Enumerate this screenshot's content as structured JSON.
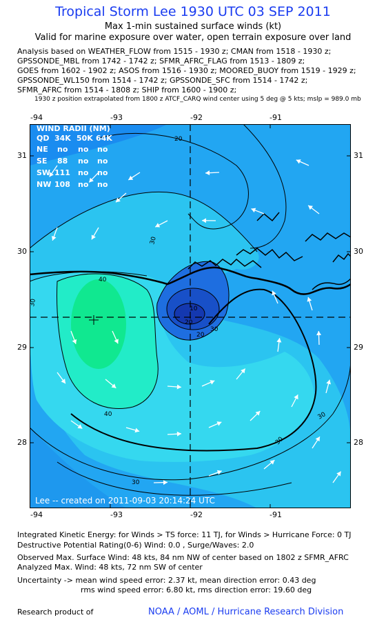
{
  "header": {
    "title": "Tropical Storm Lee 1930 UTC 03 SEP 2011",
    "subtitle1": "Max 1-min sustained surface winds (kt)",
    "subtitle2": "Valid for marine exposure over water, open terrain exposure over land"
  },
  "analysis_lines": [
    "Analysis based on WEATHER_FLOW from 1515 - 1930 z; CMAN from 1518 - 1930 z;",
    "GPSSONDE_MBL from 1742 - 1742 z; SFMR_AFRC_FLAG from 1513 - 1809 z;",
    "GOES from 1602 - 1902 z; ASOS from 1516 - 1930 z; MOORED_BUOY from 1519 - 1929 z;",
    "GPSSONDE_WL150 from 1514 - 1742 z; GPSSONDE_SFC from 1514 - 1742 z;",
    "SFMR_AFRC from 1514 - 1808 z; SHIP from 1600 - 1900 z;"
  ],
  "position_note": "1930 z position extrapolated from 1800 z ATCF_CARQ wind center using 5 deg @ 5 kts; mslp = 989.0 mb",
  "map": {
    "lon_ticks": [
      "-94",
      "-93",
      "-92",
      "-91"
    ],
    "lat_ticks": [
      "31",
      "30",
      "29",
      "28"
    ],
    "lon_range": [
      -94.0,
      -92.0
    ],
    "lat_range": [
      27.3,
      31.3
    ],
    "center": {
      "lon": -92.0,
      "lat": 29.33
    },
    "max_wind_marker": {
      "lon": -93.3,
      "lat": 29.28
    },
    "contour_labels": [
      "20",
      "30",
      "40",
      "30",
      "30",
      "40",
      "20",
      "10",
      "30",
      "20",
      "30",
      "30"
    ],
    "wind_radii": {
      "title": "WIND RADII (NM)",
      "header": [
        "QD",
        "34K",
        "50K",
        "64K"
      ],
      "rows": [
        [
          "NE",
          "no",
          "no",
          "no"
        ],
        [
          "SE",
          "88",
          "no",
          "no"
        ],
        [
          "SW",
          "111",
          "no",
          "no"
        ],
        [
          "NW",
          "108",
          "no",
          "no"
        ]
      ]
    },
    "credit": "Lee -- created on 2011-09-03 20:14:24 UTC",
    "colors": {
      "ocean_light": "#33d8f0",
      "ocean_mid": "#22bff2",
      "outer_blue": "#1a8cf0",
      "max_wind_green": "#10e890",
      "core_dark": "#1438b0",
      "accent_text": "#1a3cf0"
    }
  },
  "stats": {
    "ike": "Integrated Kinetic Energy:  for Winds > TS force: 11 TJ,  for Winds > Hurricane Force: 0 TJ",
    "destructive": "Destructive Potential Rating(0-6)   Wind: 0.0 , Surge/Waves: 2.0",
    "observed": "Observed Max. Surface Wind: 48 kts, 84 nm NW of center based on 1802 z SFMR_AFRC",
    "analyzed": "Analyzed Max. Wind: 48 kts, 72 nm SW of center",
    "uncertainty1": "Uncertainty -> mean wind speed error: 2.37 kt,   mean direction error: 0.43 deg",
    "uncertainty2": "rms wind speed error: 6.80 kt,   rms direction error: 19.60 deg"
  },
  "footer": {
    "left": "Research product of",
    "right": "NOAA / AOML / Hurricane Research Division"
  }
}
